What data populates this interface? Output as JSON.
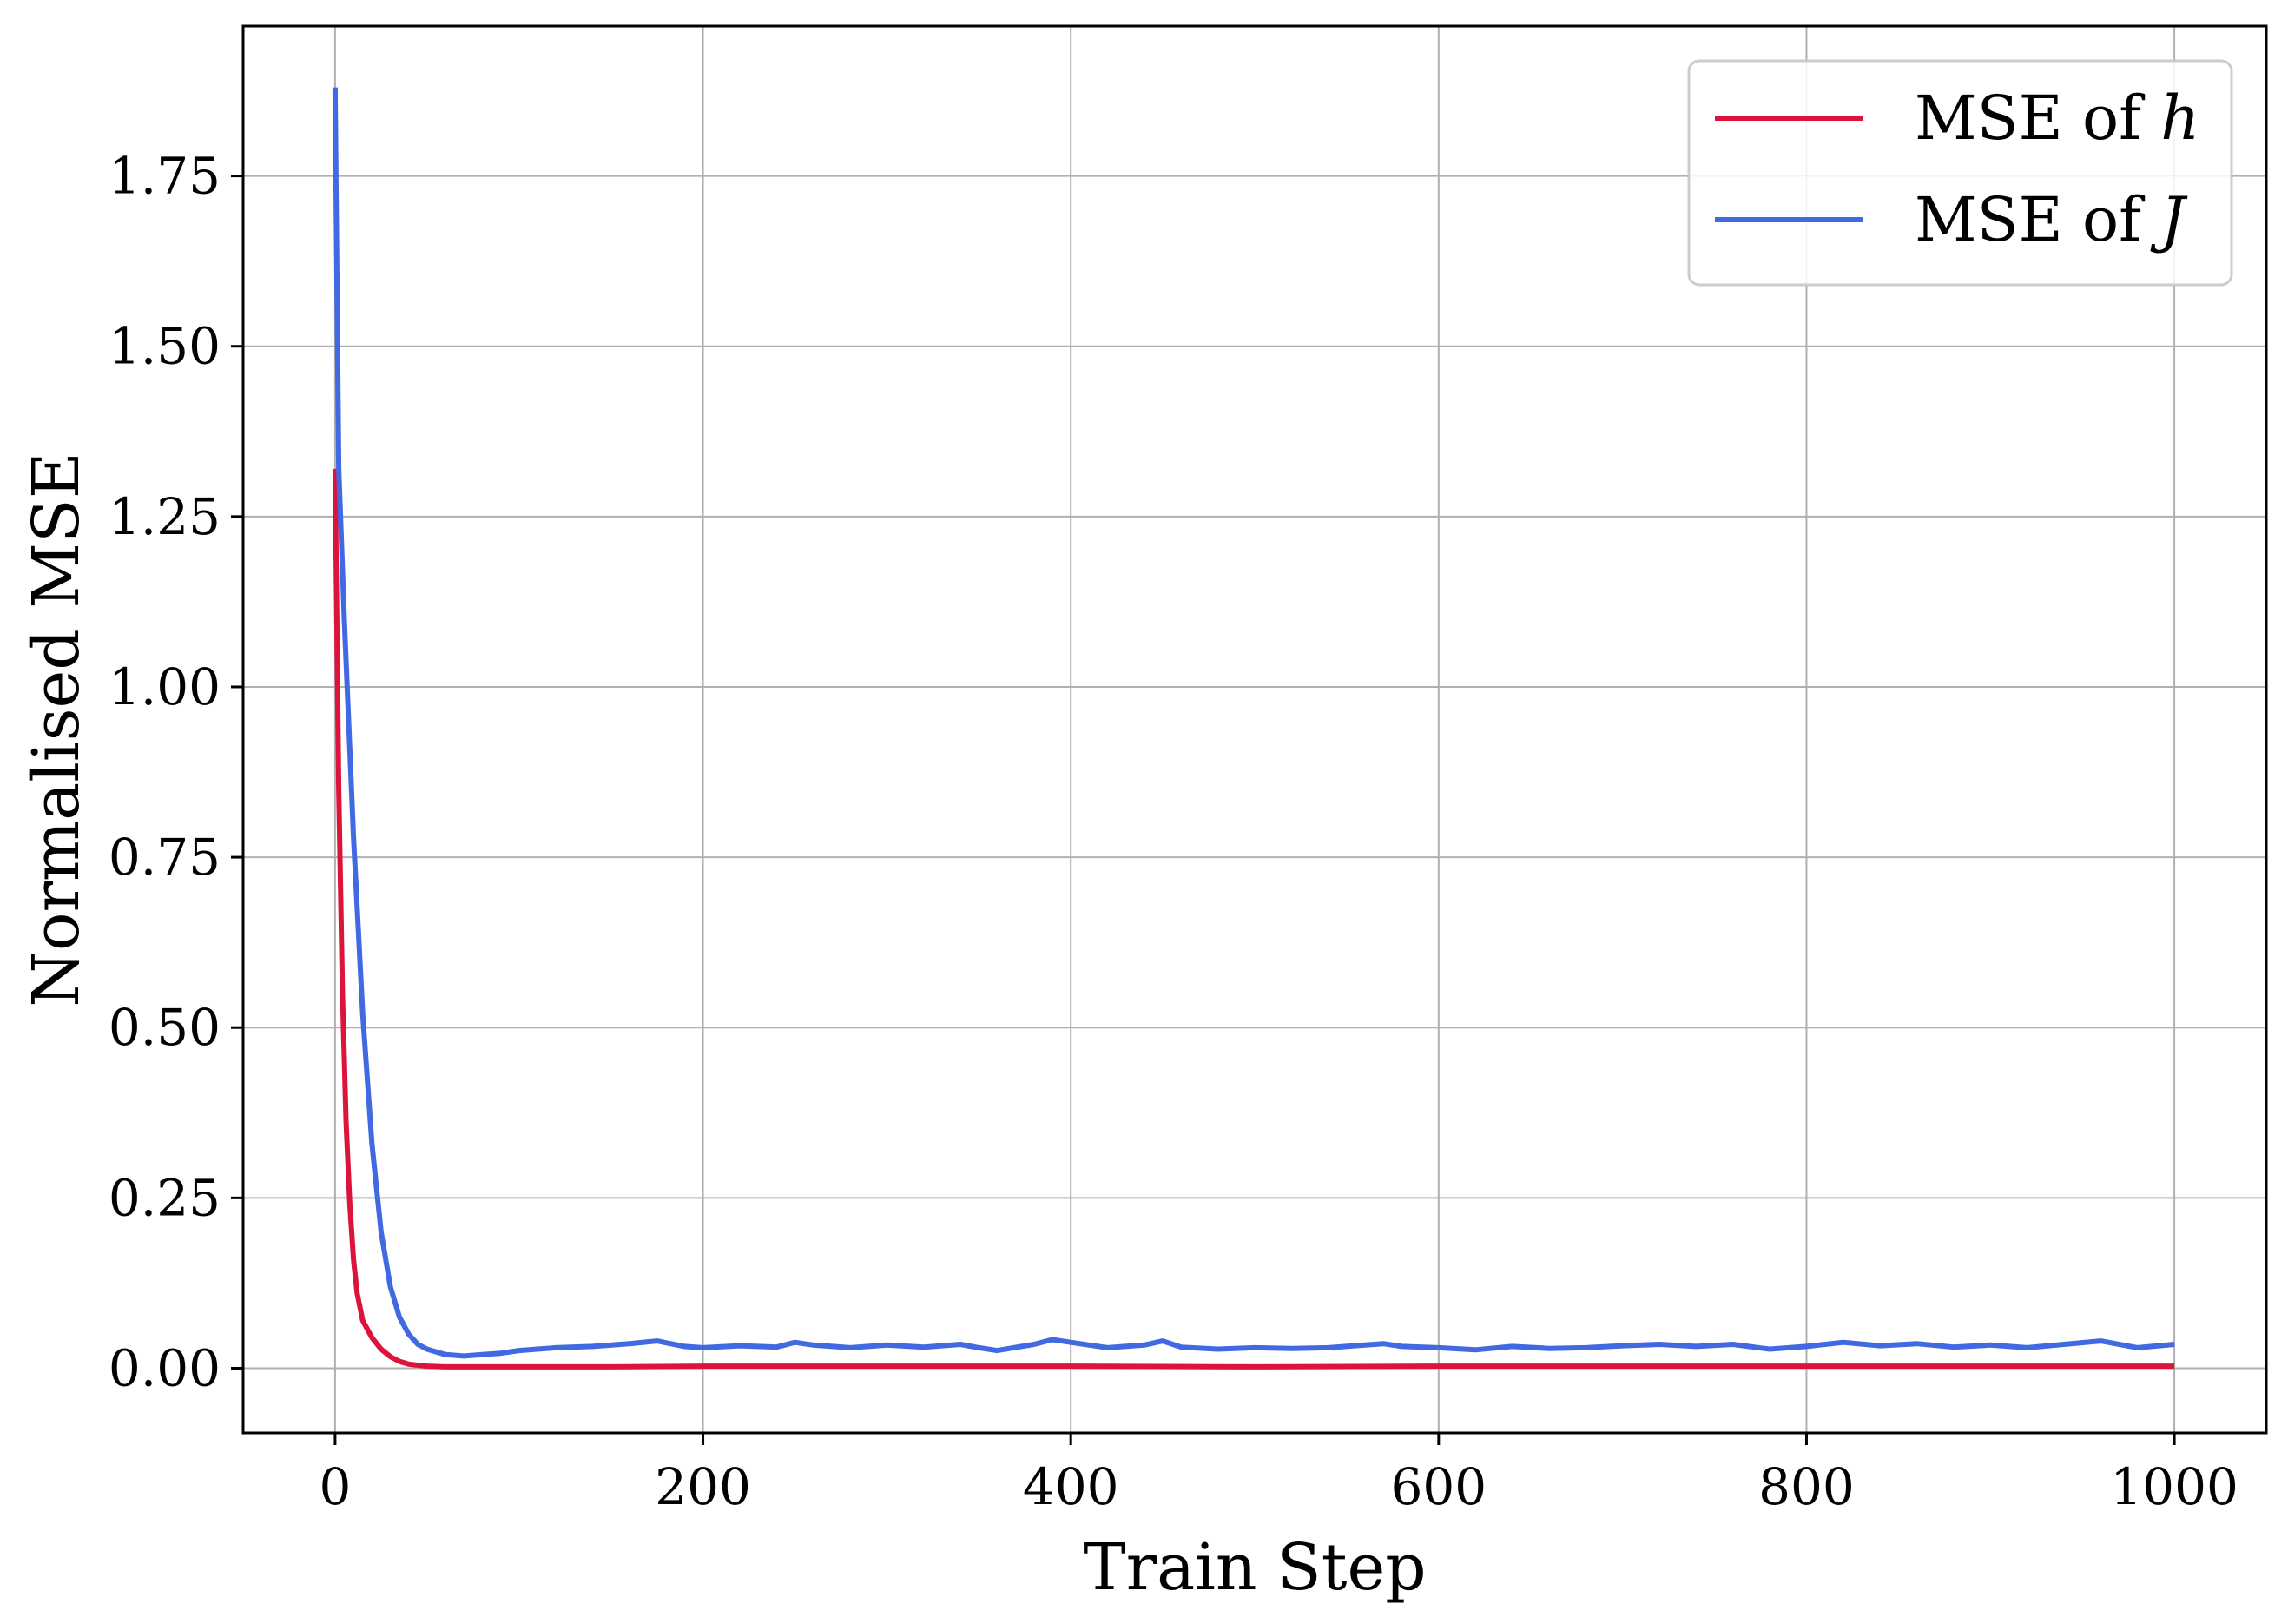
{
  "chart_data": {
    "type": "line",
    "title": "",
    "xlabel": "Train Step",
    "ylabel": "Normalised MSE",
    "xlim": [
      -50,
      1050
    ],
    "ylim": [
      -0.095,
      1.97
    ],
    "xticks": [
      0,
      200,
      400,
      600,
      800,
      1000
    ],
    "xtick_labels": [
      "0",
      "200",
      "400",
      "600",
      "800",
      "1000"
    ],
    "yticks": [
      0.0,
      0.25,
      0.5,
      0.75,
      1.0,
      1.25,
      1.5,
      1.75
    ],
    "ytick_labels": [
      "0.00",
      "0.25",
      "0.50",
      "0.75",
      "1.00",
      "1.25",
      "1.50",
      "1.75"
    ],
    "grid": true,
    "legend_position": "top-right",
    "legend_entries": [
      {
        "prefix": "MSE of ",
        "symbol": "h"
      },
      {
        "prefix": "MSE of ",
        "symbol": "J"
      }
    ],
    "series": [
      {
        "name": "MSE of h",
        "color": "#dc143c",
        "x": [
          0,
          2,
          4,
          6,
          8,
          10,
          12,
          15,
          20,
          25,
          30,
          35,
          40,
          50,
          60,
          80,
          100,
          150,
          200,
          300,
          400,
          500,
          600,
          700,
          800,
          900,
          1000
        ],
        "y": [
          1.32,
          0.85,
          0.55,
          0.36,
          0.24,
          0.16,
          0.11,
          0.07,
          0.045,
          0.028,
          0.017,
          0.01,
          0.006,
          0.003,
          0.002,
          0.002,
          0.002,
          0.002,
          0.003,
          0.003,
          0.003,
          0.002,
          0.003,
          0.003,
          0.003,
          0.003,
          0.003
        ]
      },
      {
        "name": "MSE of J",
        "color": "#4169e1",
        "x": [
          0,
          2,
          5,
          10,
          15,
          20,
          25,
          30,
          35,
          40,
          45,
          50,
          60,
          70,
          80,
          90,
          100,
          110,
          120,
          140,
          160,
          175,
          190,
          200,
          220,
          240,
          250,
          260,
          280,
          300,
          320,
          340,
          350,
          360,
          380,
          390,
          400,
          420,
          440,
          450,
          460,
          480,
          500,
          520,
          540,
          560,
          570,
          580,
          600,
          620,
          640,
          660,
          680,
          700,
          720,
          740,
          760,
          780,
          800,
          820,
          840,
          860,
          880,
          900,
          920,
          940,
          960,
          980,
          1000
        ],
        "y": [
          1.88,
          1.32,
          1.1,
          0.78,
          0.52,
          0.33,
          0.2,
          0.12,
          0.075,
          0.05,
          0.035,
          0.028,
          0.02,
          0.018,
          0.02,
          0.022,
          0.026,
          0.028,
          0.03,
          0.032,
          0.036,
          0.04,
          0.032,
          0.03,
          0.033,
          0.031,
          0.038,
          0.034,
          0.03,
          0.034,
          0.031,
          0.035,
          0.03,
          0.026,
          0.035,
          0.042,
          0.038,
          0.03,
          0.034,
          0.04,
          0.031,
          0.028,
          0.03,
          0.029,
          0.03,
          0.034,
          0.036,
          0.032,
          0.03,
          0.027,
          0.032,
          0.029,
          0.03,
          0.033,
          0.035,
          0.032,
          0.035,
          0.028,
          0.032,
          0.038,
          0.033,
          0.036,
          0.031,
          0.034,
          0.03,
          0.035,
          0.04,
          0.03,
          0.035
        ]
      }
    ]
  }
}
